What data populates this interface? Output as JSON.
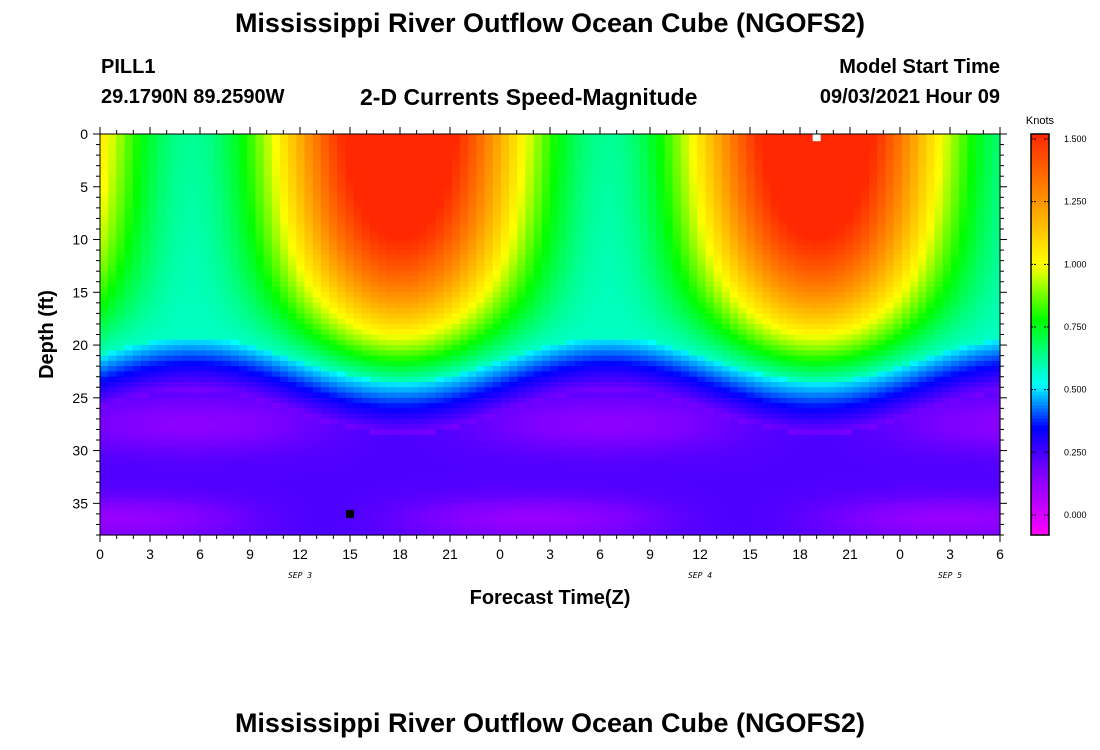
{
  "header": {
    "title": "Mississippi River Outflow Ocean Cube (NGOFS2)",
    "station": "PILL1",
    "coords": "29.1790N  89.2590W",
    "subtitle": "2-D Currents Speed-Magnitude",
    "model_start_label": "Model Start Time",
    "model_start_value": "09/03/2021 Hour 09"
  },
  "footer": {
    "title": "Mississippi River Outflow Ocean Cube (NGOFS2)"
  },
  "chart_data": {
    "type": "heatmap",
    "title": "2-D Currents Speed-Magnitude",
    "xlabel": "Forecast Time(Z)",
    "ylabel": "Depth (ft)",
    "x_range_hours": [
      0,
      54
    ],
    "xlim": [
      0,
      54
    ],
    "ylim": [
      38,
      0
    ],
    "x_ticks": [
      "0",
      "3",
      "6",
      "9",
      "12",
      "15",
      "18",
      "21",
      "0",
      "3",
      "6",
      "9",
      "12",
      "15",
      "18",
      "21",
      "0",
      "3",
      "6"
    ],
    "x_ticks_hours": [
      0,
      3,
      6,
      9,
      12,
      15,
      18,
      21,
      24,
      27,
      30,
      33,
      36,
      39,
      42,
      45,
      48,
      51,
      54
    ],
    "date_labels": [
      {
        "text": "SEP 3",
        "hour": 12
      },
      {
        "text": "SEP 4",
        "hour": 36
      },
      {
        "text": "SEP 5",
        "hour": 51
      }
    ],
    "y_ticks": [
      0,
      5,
      10,
      15,
      20,
      25,
      30,
      35
    ],
    "colorbar": {
      "unit": "Knots",
      "min": -0.08,
      "max": 1.52,
      "ticks": [
        "1.500",
        "1.250",
        "1.000",
        "0.750",
        "0.500",
        "0.250",
        "0.000"
      ],
      "tick_values": [
        1.5,
        1.25,
        1.0,
        0.75,
        0.5,
        0.25,
        0.0
      ]
    },
    "grid": false,
    "speed_maxima": [
      {
        "hour": 18,
        "depth_ft": 5,
        "speed_knots": 1.5
      },
      {
        "hour": 43,
        "depth_ft": 5,
        "speed_knots": 1.5
      }
    ],
    "speed_minima": [
      {
        "hour": 8,
        "depth_ft": 28,
        "speed_knots": 0.1
      },
      {
        "hour": 33,
        "depth_ft": 28,
        "speed_knots": 0.1
      }
    ],
    "markers": [
      {
        "hour": 15,
        "depth_ft": 36,
        "color": "#000000"
      },
      {
        "hour": 43,
        "depth_ft": 0.3,
        "color": "#ffffff"
      }
    ]
  }
}
